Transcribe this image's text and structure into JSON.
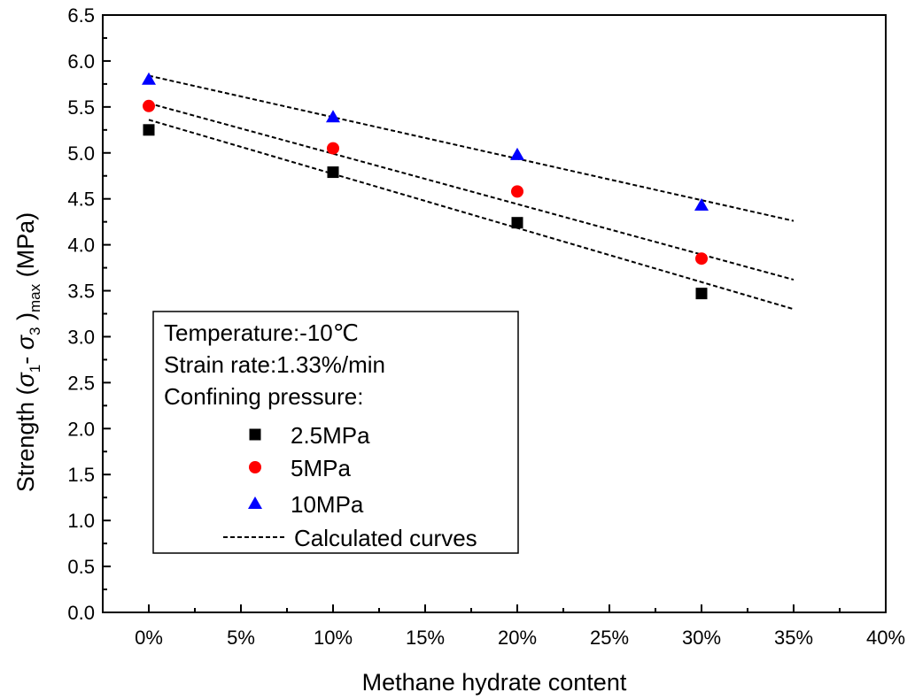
{
  "chart_data": {
    "type": "scatter",
    "xlabel": "Methane hydrate content",
    "ylabel": {
      "prefix": "Strength (",
      "sigma": "σ",
      "sub1": "1",
      "dash": "- ",
      "sub3": "3",
      "close": " )",
      "subscript": "max",
      "units": " (MPa)"
    },
    "xlim": [
      -0.025,
      0.4
    ],
    "ylim": [
      0,
      6.5
    ],
    "x_ticks": [
      0,
      0.05,
      0.1,
      0.15,
      0.2,
      0.25,
      0.3,
      0.35,
      0.4
    ],
    "x_tick_labels": [
      "0%",
      "5%",
      "10%",
      "15%",
      "20%",
      "25%",
      "30%",
      "35%",
      "40%"
    ],
    "y_ticks": [
      0,
      0.5,
      1,
      1.5,
      2,
      2.5,
      3,
      3.5,
      4,
      4.5,
      5,
      5.5,
      6,
      6.5
    ],
    "y_tick_labels": [
      "0.0",
      "0.5",
      "1.0",
      "1.5",
      "2.0",
      "2.5",
      "3.0",
      "3.5",
      "4.0",
      "4.5",
      "5.0",
      "5.5",
      "6.0",
      "6.5"
    ],
    "series": [
      {
        "name": "2.5MPa",
        "marker": "square",
        "color": "#000000",
        "x": [
          0,
          0.1,
          0.2,
          0.3
        ],
        "y": [
          5.25,
          4.79,
          4.24,
          3.47
        ]
      },
      {
        "name": "5MPa",
        "marker": "circle",
        "color": "#ff0000",
        "x": [
          0,
          0.1,
          0.2,
          0.3
        ],
        "y": [
          5.51,
          5.05,
          4.58,
          3.85
        ]
      },
      {
        "name": "10MPa",
        "marker": "triangle",
        "color": "#0000ff",
        "x": [
          0,
          0.1,
          0.2,
          0.3
        ],
        "y": [
          5.8,
          5.39,
          4.98,
          4.43
        ]
      }
    ],
    "calculated_curves": {
      "name": "Calculated curves",
      "style": "dashed",
      "color": "#000000",
      "lines": [
        {
          "x": [
            0,
            0.35
          ],
          "y": [
            5.36,
            3.3
          ]
        },
        {
          "x": [
            0,
            0.35
          ],
          "y": [
            5.54,
            3.62
          ]
        },
        {
          "x": [
            0,
            0.35
          ],
          "y": [
            5.84,
            4.26
          ]
        }
      ]
    },
    "annotation": {
      "lines": [
        "Temperature:-10℃",
        "Strain rate:1.33%/min",
        "Confining pressure:"
      ]
    },
    "legend_position": "bottom-left",
    "grid": false
  }
}
